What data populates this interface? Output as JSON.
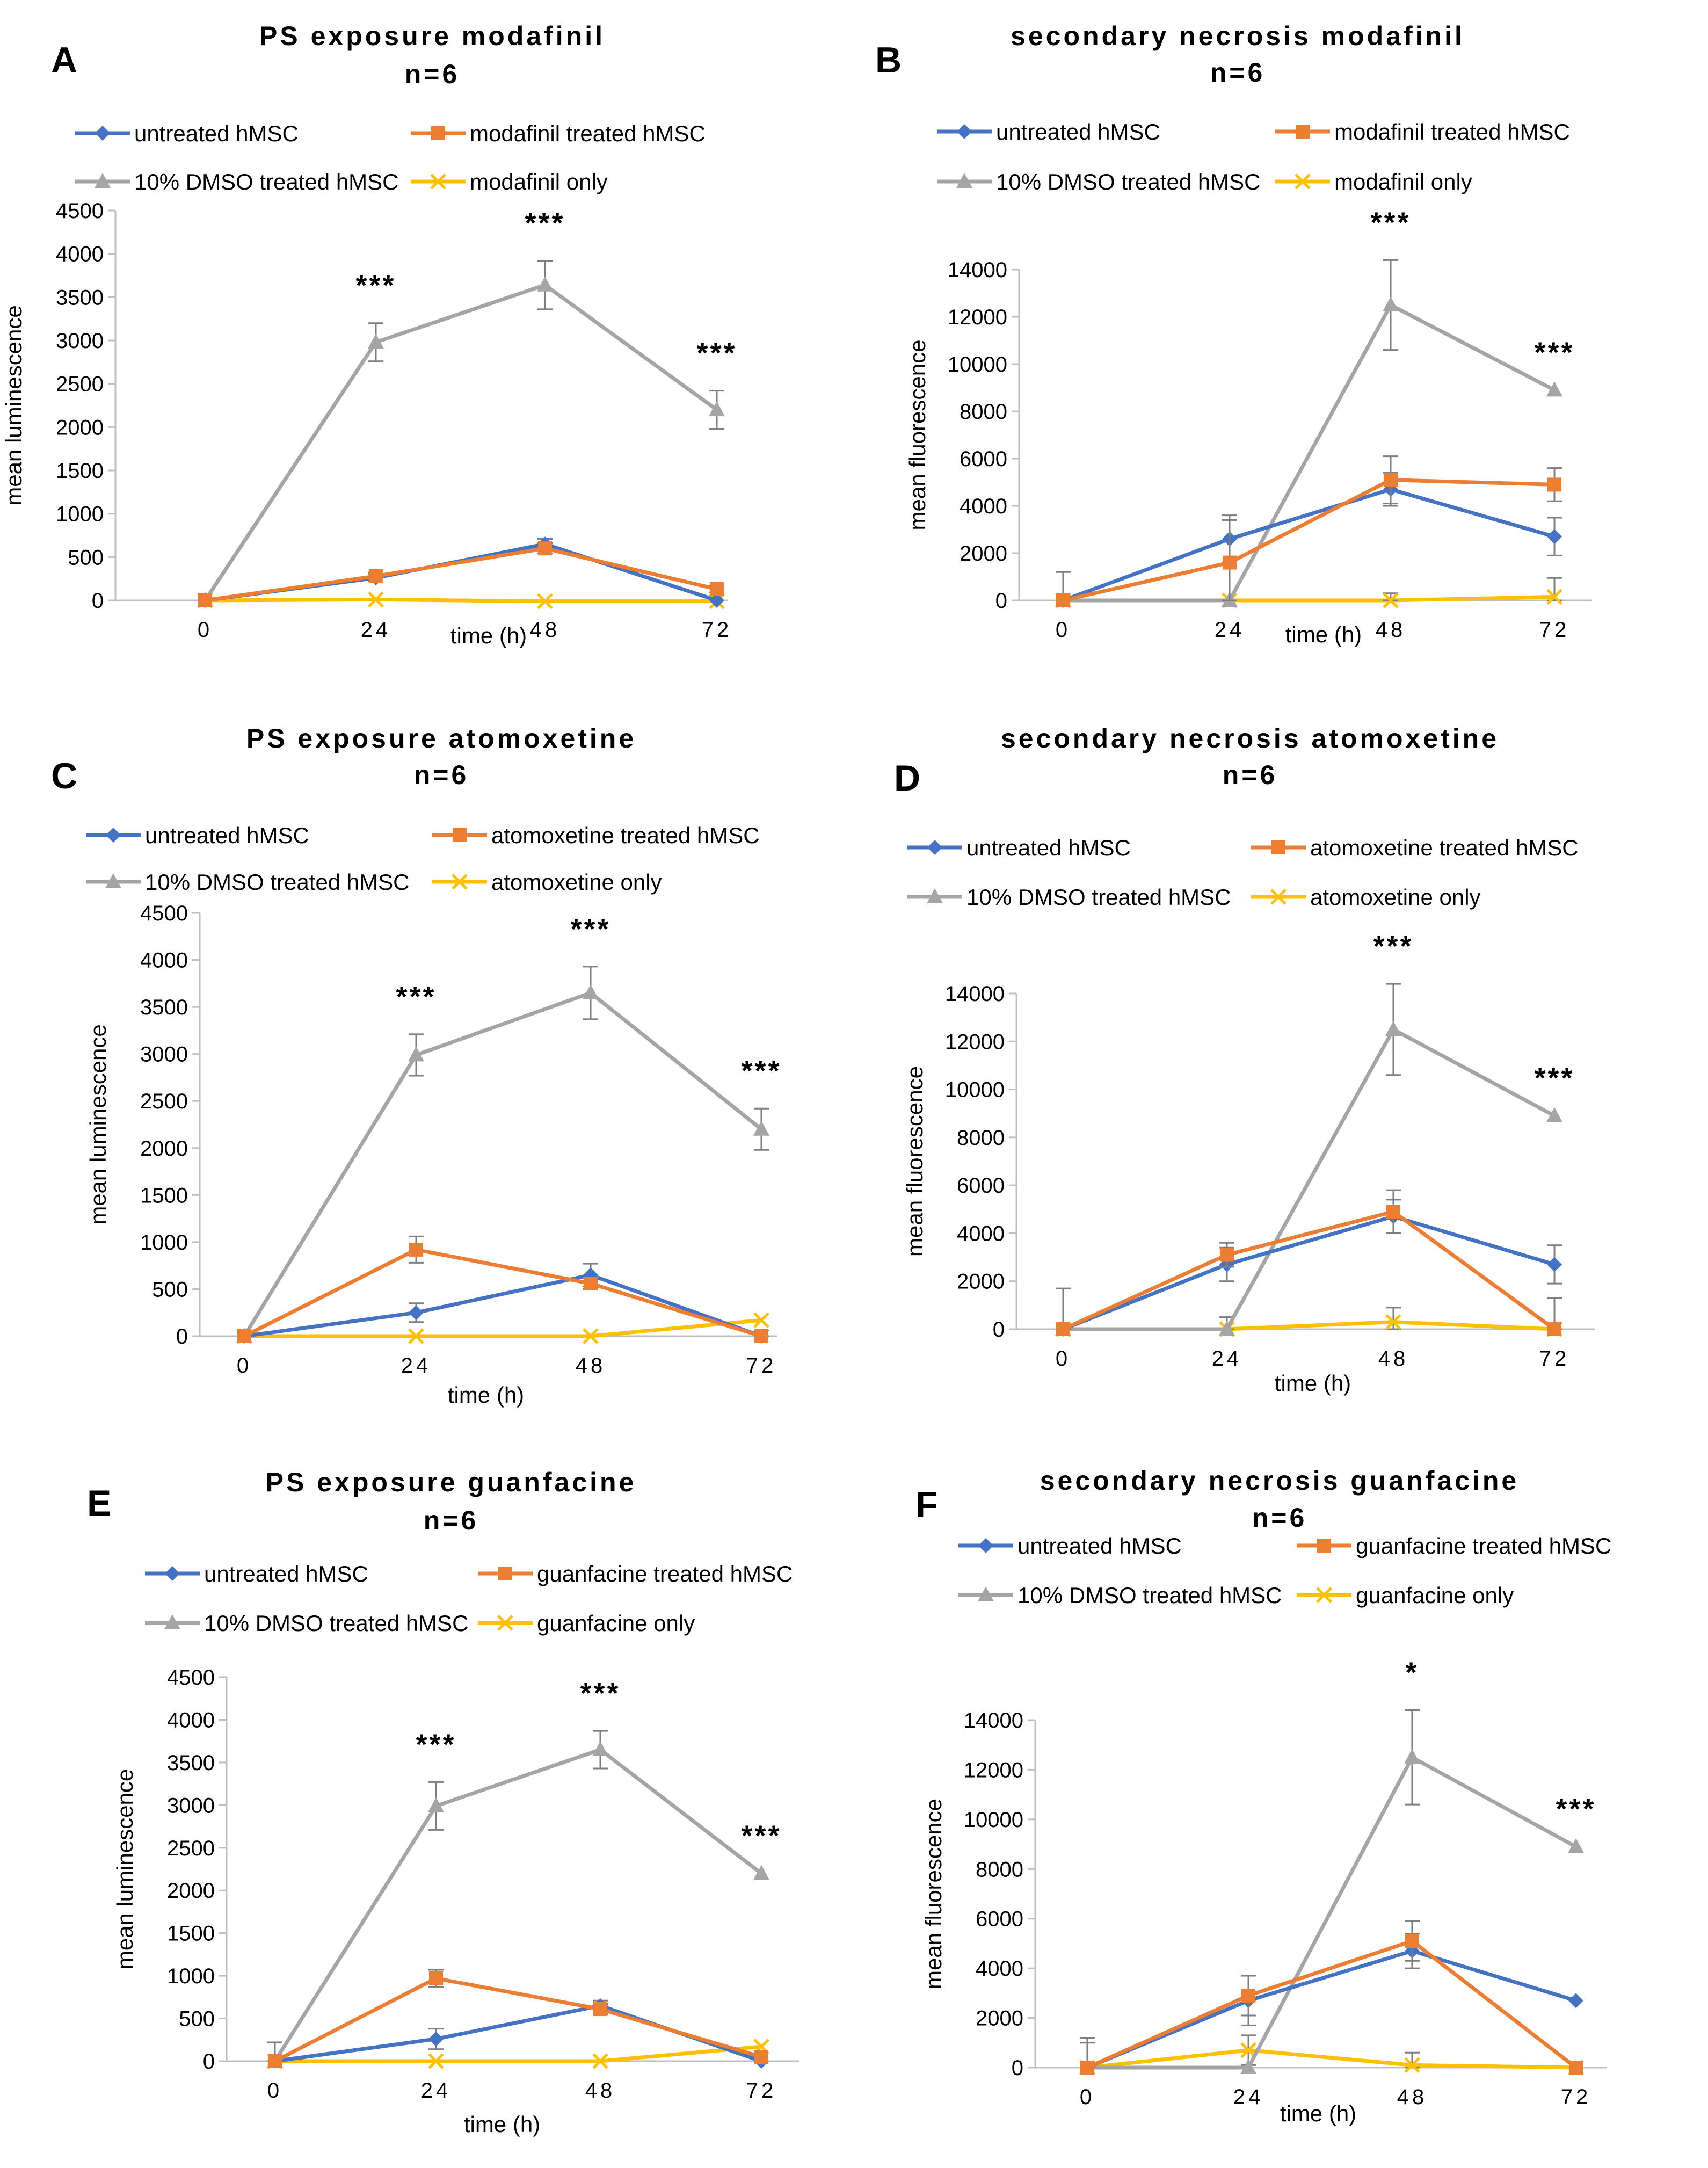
{
  "figure": {
    "panels": [
      "A",
      "B",
      "C",
      "D",
      "E",
      "F"
    ]
  },
  "colors": {
    "untreated": "#4472C4",
    "treated": "#ED7D31",
    "dmso": "#A5A5A5",
    "drug_only": "#FFC000",
    "axis": "#BFBFBF",
    "text": "#000000"
  },
  "chart_data": [
    {
      "panel": "A",
      "type": "line",
      "title": "PS exposure modafinil",
      "subtitle": "n=6",
      "xlabel": "time (h)",
      "ylabel": "mean luminescence",
      "categories": [
        "0",
        "24",
        "48",
        "72"
      ],
      "ylim": [
        0,
        4500
      ],
      "yticks": [
        "0",
        "500",
        "1000",
        "1500",
        "2000",
        "2500",
        "3000",
        "3500",
        "4000",
        "4500"
      ],
      "series": [
        {
          "name": "untreated hMSC",
          "key": "untreated",
          "marker": "diamond",
          "values": [
            0,
            260,
            650,
            0
          ],
          "errors": [
            0,
            40,
            60,
            0
          ]
        },
        {
          "name": "modafinil treated hMSC",
          "key": "treated",
          "marker": "square",
          "values": [
            0,
            280,
            600,
            130
          ],
          "errors": [
            0,
            40,
            60,
            40
          ]
        },
        {
          "name": "10% DMSO treated hMSC",
          "key": "dmso",
          "marker": "triangle",
          "values": [
            0,
            2980,
            3640,
            2200
          ],
          "errors": [
            0,
            220,
            280,
            220
          ]
        },
        {
          "name": "modafinil only",
          "key": "drug_only",
          "marker": "x",
          "values": [
            0,
            10,
            -10,
            -10
          ],
          "errors": [
            0,
            0,
            0,
            0
          ]
        }
      ],
      "annotations": [
        {
          "x": 1,
          "text": "***"
        },
        {
          "x": 2,
          "text": "***"
        },
        {
          "x": 3,
          "text": "***"
        }
      ]
    },
    {
      "panel": "B",
      "type": "line",
      "title": "secondary necrosis modafinil",
      "subtitle": "n=6",
      "xlabel": "time (h)",
      "ylabel": "mean fluorescence",
      "categories": [
        "0",
        "24",
        "48",
        "72"
      ],
      "ylim": [
        0,
        14000
      ],
      "yticks": [
        "0",
        "2000",
        "4000",
        "6000",
        "8000",
        "10000",
        "12000",
        "14000"
      ],
      "series": [
        {
          "name": "untreated hMSC",
          "key": "untreated",
          "marker": "diamond",
          "values": [
            0,
            2600,
            4700,
            2700
          ],
          "errors": [
            0,
            1000,
            700,
            800
          ]
        },
        {
          "name": "modafinil treated hMSC",
          "key": "treated",
          "marker": "square",
          "values": [
            0,
            1600,
            5100,
            4900
          ],
          "errors": [
            1200,
            1800,
            1000,
            700
          ]
        },
        {
          "name": "10% DMSO treated hMSC",
          "key": "dmso",
          "marker": "triangle",
          "values": [
            0,
            0,
            12500,
            8900
          ],
          "errors": [
            0,
            0,
            1900,
            0
          ]
        },
        {
          "name": "modafinil only",
          "key": "drug_only",
          "marker": "x",
          "values": [
            0,
            0,
            0,
            150
          ],
          "errors": [
            0,
            0,
            300,
            800
          ]
        }
      ],
      "annotations": [
        {
          "x": 2,
          "text": "***"
        },
        {
          "x": 3,
          "text": "***"
        }
      ]
    },
    {
      "panel": "C",
      "type": "line",
      "title": "PS exposure atomoxetine",
      "subtitle": "n=6",
      "xlabel": "time (h)",
      "ylabel": "mean luminescence",
      "categories": [
        "0",
        "24",
        "48",
        "72"
      ],
      "ylim": [
        0,
        4500
      ],
      "yticks": [
        "0",
        "500",
        "1000",
        "1500",
        "2000",
        "2500",
        "3000",
        "3500",
        "4000",
        "4500"
      ],
      "series": [
        {
          "name": "untreated hMSC",
          "key": "untreated",
          "marker": "diamond",
          "values": [
            0,
            250,
            650,
            0
          ],
          "errors": [
            0,
            100,
            120,
            0
          ]
        },
        {
          "name": "atomoxetine treated hMSC",
          "key": "treated",
          "marker": "square",
          "values": [
            0,
            920,
            560,
            0
          ],
          "errors": [
            0,
            140,
            60,
            60
          ]
        },
        {
          "name": "10% DMSO treated hMSC",
          "key": "dmso",
          "marker": "triangle",
          "values": [
            0,
            2990,
            3650,
            2200
          ],
          "errors": [
            0,
            220,
            280,
            220
          ]
        },
        {
          "name": "atomoxetine only",
          "key": "drug_only",
          "marker": "x",
          "values": [
            0,
            0,
            0,
            170
          ],
          "errors": [
            0,
            0,
            0,
            0
          ]
        }
      ],
      "annotations": [
        {
          "x": 1,
          "text": "***"
        },
        {
          "x": 2,
          "text": "***"
        },
        {
          "x": 3,
          "text": "***"
        }
      ]
    },
    {
      "panel": "D",
      "type": "line",
      "title": "secondary necrosis atomoxetine",
      "subtitle": "n=6",
      "xlabel": "time (h)",
      "ylabel": "mean fluorescence",
      "categories": [
        "0",
        "24",
        "48",
        "72"
      ],
      "ylim": [
        0,
        14000
      ],
      "yticks": [
        "0",
        "2000",
        "4000",
        "6000",
        "8000",
        "10000",
        "12000",
        "14000"
      ],
      "series": [
        {
          "name": "untreated hMSC",
          "key": "untreated",
          "marker": "diamond",
          "values": [
            0,
            2700,
            4700,
            2700
          ],
          "errors": [
            0,
            700,
            700,
            800
          ]
        },
        {
          "name": "atomoxetine treated hMSC",
          "key": "treated",
          "marker": "square",
          "values": [
            0,
            3100,
            4900,
            0
          ],
          "errors": [
            1700,
            500,
            900,
            1300
          ]
        },
        {
          "name": "10% DMSO treated hMSC",
          "key": "dmso",
          "marker": "triangle",
          "values": [
            0,
            0,
            12500,
            8900
          ],
          "errors": [
            0,
            0,
            1900,
            0
          ]
        },
        {
          "name": "atomoxetine only",
          "key": "drug_only",
          "marker": "x",
          "values": [
            0,
            0,
            300,
            0
          ],
          "errors": [
            0,
            500,
            600,
            0
          ]
        }
      ],
      "annotations": [
        {
          "x": 2,
          "text": "***"
        },
        {
          "x": 3,
          "text": "***"
        }
      ]
    },
    {
      "panel": "E",
      "type": "line",
      "title": "PS exposure guanfacine",
      "subtitle": "n=6",
      "xlabel": "time (h)",
      "ylabel": "mean luminescence",
      "categories": [
        "0",
        "24",
        "48",
        "72"
      ],
      "ylim": [
        0,
        4500
      ],
      "yticks": [
        "0",
        "500",
        "1000",
        "1500",
        "2000",
        "2500",
        "3000",
        "3500",
        "4000",
        "4500"
      ],
      "series": [
        {
          "name": "untreated hMSC",
          "key": "untreated",
          "marker": "diamond",
          "values": [
            0,
            260,
            650,
            0
          ],
          "errors": [
            0,
            120,
            60,
            0
          ]
        },
        {
          "name": "guanfacine treated hMSC",
          "key": "treated",
          "marker": "square",
          "values": [
            0,
            970,
            610,
            50
          ],
          "errors": [
            220,
            100,
            60,
            0
          ]
        },
        {
          "name": "10% DMSO treated hMSC",
          "key": "dmso",
          "marker": "triangle",
          "values": [
            0,
            2990,
            3650,
            2200
          ],
          "errors": [
            0,
            280,
            220,
            0
          ]
        },
        {
          "name": "guanfacine only",
          "key": "drug_only",
          "marker": "x",
          "values": [
            0,
            0,
            0,
            170
          ],
          "errors": [
            0,
            0,
            0,
            0
          ]
        }
      ],
      "annotations": [
        {
          "x": 1,
          "text": "***"
        },
        {
          "x": 2,
          "text": "***"
        },
        {
          "x": 3,
          "text": "***"
        }
      ]
    },
    {
      "panel": "F",
      "type": "line",
      "title": "secondary necrosis guanfacine",
      "subtitle": "n=6",
      "xlabel": "time (h)",
      "ylabel": "mean fluorescence",
      "categories": [
        "0",
        "24",
        "48",
        "72"
      ],
      "ylim": [
        0,
        14000
      ],
      "yticks": [
        "0",
        "2000",
        "4000",
        "6000",
        "8000",
        "10000",
        "12000",
        "14000"
      ],
      "series": [
        {
          "name": "untreated hMSC",
          "key": "untreated",
          "marker": "diamond",
          "values": [
            0,
            2700,
            4700,
            2700
          ],
          "errors": [
            1000,
            1000,
            700,
            0
          ]
        },
        {
          "name": "guanfacine treated hMSC",
          "key": "treated",
          "marker": "square",
          "values": [
            0,
            2900,
            5100,
            0
          ],
          "errors": [
            1200,
            800,
            800,
            0
          ]
        },
        {
          "name": "10% DMSO treated hMSC",
          "key": "dmso",
          "marker": "triangle",
          "values": [
            0,
            0,
            12500,
            8900
          ],
          "errors": [
            0,
            0,
            1900,
            0
          ]
        },
        {
          "name": "guanfacine only",
          "key": "drug_only",
          "marker": "x",
          "values": [
            0,
            700,
            100,
            0
          ],
          "errors": [
            0,
            600,
            500,
            0
          ]
        }
      ],
      "annotations": [
        {
          "x": 2,
          "text": "*"
        },
        {
          "x": 3,
          "text": "***"
        }
      ]
    }
  ]
}
